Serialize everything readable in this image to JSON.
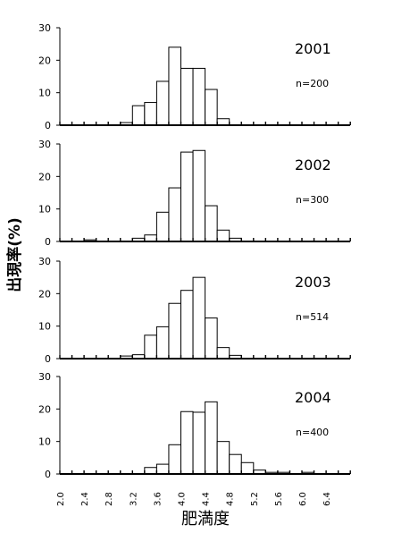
{
  "chart_data": {
    "type": "bar",
    "categories": [
      "2.0",
      "2.2",
      "2.4",
      "2.6",
      "2.8",
      "3.0",
      "3.2",
      "3.4",
      "3.6",
      "3.8",
      "4.0",
      "4.2",
      "4.4",
      "4.6",
      "4.8",
      "5.0",
      "5.2",
      "5.4",
      "5.6",
      "5.8",
      "6.0",
      "6.2",
      "6.4",
      "6.6"
    ],
    "x_tick_labels": [
      "2.0",
      "2.4",
      "2.8",
      "3.2",
      "3.6",
      "4.0",
      "4.4",
      "4.8",
      "5.2",
      "5.6",
      "6.0",
      "6.4"
    ],
    "xlabel": "肥満度",
    "ylabel": "出現率(%)",
    "ylim": [
      0,
      30
    ],
    "y_ticks": [
      "0",
      "10",
      "20",
      "30"
    ],
    "panels": [
      {
        "year": "2001",
        "n": "n=200",
        "values": [
          0,
          0,
          0,
          0,
          0,
          0.8,
          6,
          7,
          13.5,
          24,
          17.5,
          17.5,
          11,
          2,
          0,
          0,
          0,
          0,
          0,
          0,
          0,
          0,
          0,
          0
        ]
      },
      {
        "year": "2002",
        "n": "n=300",
        "values": [
          0,
          0,
          0.5,
          0,
          0,
          0,
          1,
          2,
          9,
          16.5,
          27.5,
          28,
          11,
          3.5,
          1,
          0,
          0,
          0,
          0,
          0,
          0,
          0,
          0,
          0
        ]
      },
      {
        "year": "2003",
        "n": "n=514",
        "values": [
          0,
          0,
          0,
          0,
          0,
          0.8,
          1.2,
          7.2,
          9.8,
          17,
          21,
          25,
          12.5,
          3.4,
          1,
          0,
          0,
          0,
          0,
          0,
          0,
          0,
          0,
          0
        ]
      },
      {
        "year": "2004",
        "n": "n=400",
        "values": [
          0,
          0,
          0,
          0,
          0,
          0,
          0,
          2,
          3,
          9,
          19.2,
          19,
          22.2,
          10,
          6,
          3.5,
          1.2,
          0.5,
          0.5,
          0,
          0.5,
          0,
          0,
          0
        ]
      }
    ]
  }
}
